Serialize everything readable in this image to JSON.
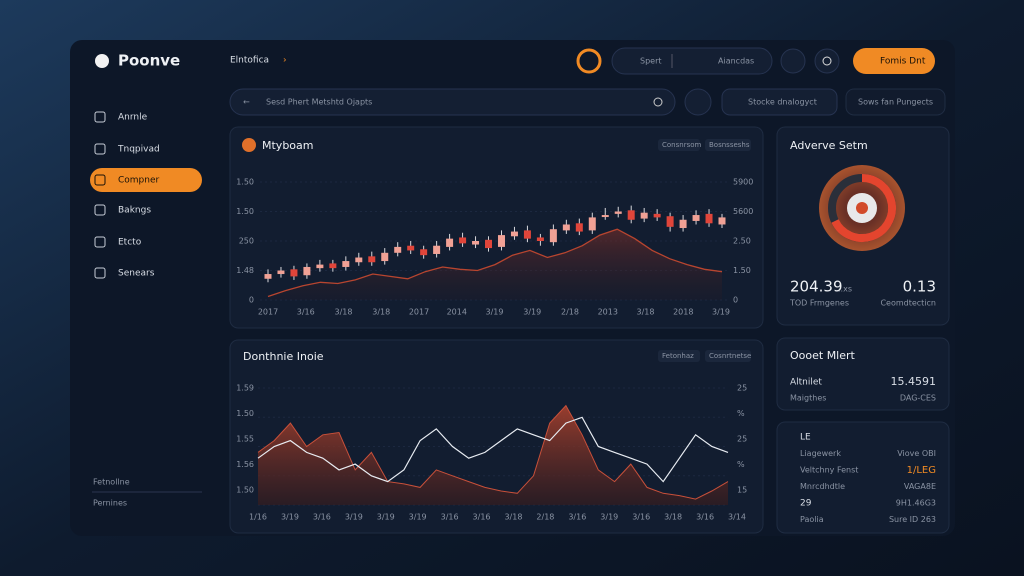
{
  "brand": "Poonve",
  "breadcrumb": "Elntofica",
  "topbar": {
    "pill_left": "Spert",
    "pill_right": "Aiancdas",
    "button": "Fomis Dnt"
  },
  "search": {
    "placeholder": "Sesd Phert Metshtd Ojapts",
    "dropdown_1": "Stocke dnalogyct",
    "dropdown_2": "Sows fan Pungects"
  },
  "nav": [
    "Anrnle",
    "Tnqpivad",
    "Compner",
    "Bakngs",
    "Etcto",
    "Senears"
  ],
  "nav_active": 2,
  "sidebar_footer": [
    "Fetnollne",
    "Pernines"
  ],
  "price_panel": {
    "title": "Mtyboam",
    "chips": [
      "Consnrsom",
      "Bosnsseshs"
    ],
    "ylim": [
      0,
      100
    ],
    "open": [
      18,
      22,
      26,
      21,
      27,
      31,
      28,
      32,
      37,
      33,
      40,
      46,
      43,
      39,
      45,
      53,
      47,
      51,
      45,
      54,
      59,
      53,
      49,
      59,
      65,
      59,
      71,
      73,
      76,
      69,
      73,
      71,
      61,
      67,
      73,
      64
    ],
    "close": [
      22,
      25,
      20,
      28,
      30,
      27,
      33,
      36,
      32,
      40,
      45,
      42,
      38,
      46,
      52,
      48,
      50,
      44,
      55,
      58,
      52,
      50,
      60,
      64,
      58,
      70,
      72,
      75,
      68,
      74,
      70,
      62,
      68,
      72,
      65,
      70
    ],
    "high": [
      26,
      28,
      29,
      31,
      34,
      34,
      37,
      40,
      41,
      44,
      49,
      50,
      46,
      50,
      56,
      57,
      54,
      54,
      59,
      62,
      63,
      56,
      64,
      68,
      69,
      74,
      78,
      79,
      80,
      78,
      77,
      74,
      72,
      76,
      77,
      73
    ],
    "low": [
      15,
      19,
      17,
      18,
      24,
      24,
      25,
      29,
      29,
      30,
      37,
      39,
      35,
      36,
      42,
      45,
      44,
      41,
      42,
      51,
      49,
      46,
      46,
      56,
      55,
      56,
      68,
      70,
      65,
      66,
      67,
      58,
      58,
      64,
      62,
      61
    ],
    "area_values": [
      3,
      8,
      12,
      15,
      14,
      17,
      22,
      20,
      18,
      24,
      28,
      26,
      25,
      30,
      38,
      42,
      36,
      40,
      46,
      55,
      60,
      52,
      42,
      35,
      30,
      26,
      24
    ],
    "y_left_labels": [
      "1.50",
      "1.50",
      "250",
      "1.48",
      "0"
    ],
    "y_right_labels": [
      "5900",
      "5600",
      "2.50",
      "1.50",
      "0"
    ],
    "x_labels": [
      "2017",
      "3/16",
      "3/18",
      "3/18",
      "2017",
      "2014",
      "3/19",
      "3/19",
      "2/18",
      "2013",
      "3/18",
      "2018",
      "3/19"
    ]
  },
  "flow_panel": {
    "title": "Donthnie Inoie",
    "chips": [
      "Fetonhaz",
      "Cosnrtnetse"
    ],
    "ylim": [
      0,
      100
    ],
    "area_values": [
      45,
      55,
      70,
      50,
      60,
      62,
      30,
      45,
      20,
      18,
      15,
      30,
      25,
      20,
      15,
      12,
      10,
      25,
      70,
      85,
      60,
      30,
      20,
      35,
      15,
      10,
      8,
      5,
      12,
      20
    ],
    "line_values": [
      40,
      50,
      55,
      45,
      40,
      30,
      35,
      25,
      20,
      30,
      55,
      65,
      50,
      40,
      45,
      55,
      65,
      60,
      55,
      70,
      75,
      50,
      45,
      40,
      35,
      20,
      40,
      60,
      50,
      45
    ],
    "y_left_labels": [
      "1.59",
      "1.50",
      "1.55",
      "1.56",
      "1.50"
    ],
    "y_right_labels": [
      "25",
      "%",
      "25",
      "%",
      "15"
    ],
    "x_labels": [
      "1/16",
      "3/19",
      "3/16",
      "3/19",
      "3/19",
      "3/19",
      "3/16",
      "3/16",
      "3/18",
      "2/18",
      "3/16",
      "3/19",
      "3/16",
      "3/18",
      "3/16",
      "3/14"
    ]
  },
  "score_panel": {
    "title": "Adverve Setm",
    "value_1": "204.39",
    "value_1_unit": "..xs",
    "value_2": "0.13",
    "label_1": "TOD Frmgenes",
    "label_2": "Ceomdtecticn"
  },
  "alert_panel": {
    "title": "Oooet Mlert",
    "rows": [
      [
        "Altnilet",
        "15.4591"
      ],
      [
        "Maigthes",
        "DAG-CES"
      ]
    ]
  },
  "list_panel": {
    "rows": [
      [
        "LE",
        ""
      ],
      [
        "Liagewerk",
        "Viove OBI"
      ],
      [
        "Veltchny Fenst",
        "1/LEG"
      ],
      [
        "Mnrcdhdtle",
        "VAGA8E"
      ],
      [
        "29",
        "9H1.46G3"
      ],
      [
        "Paolia",
        "Sure ID 263"
      ]
    ]
  }
}
